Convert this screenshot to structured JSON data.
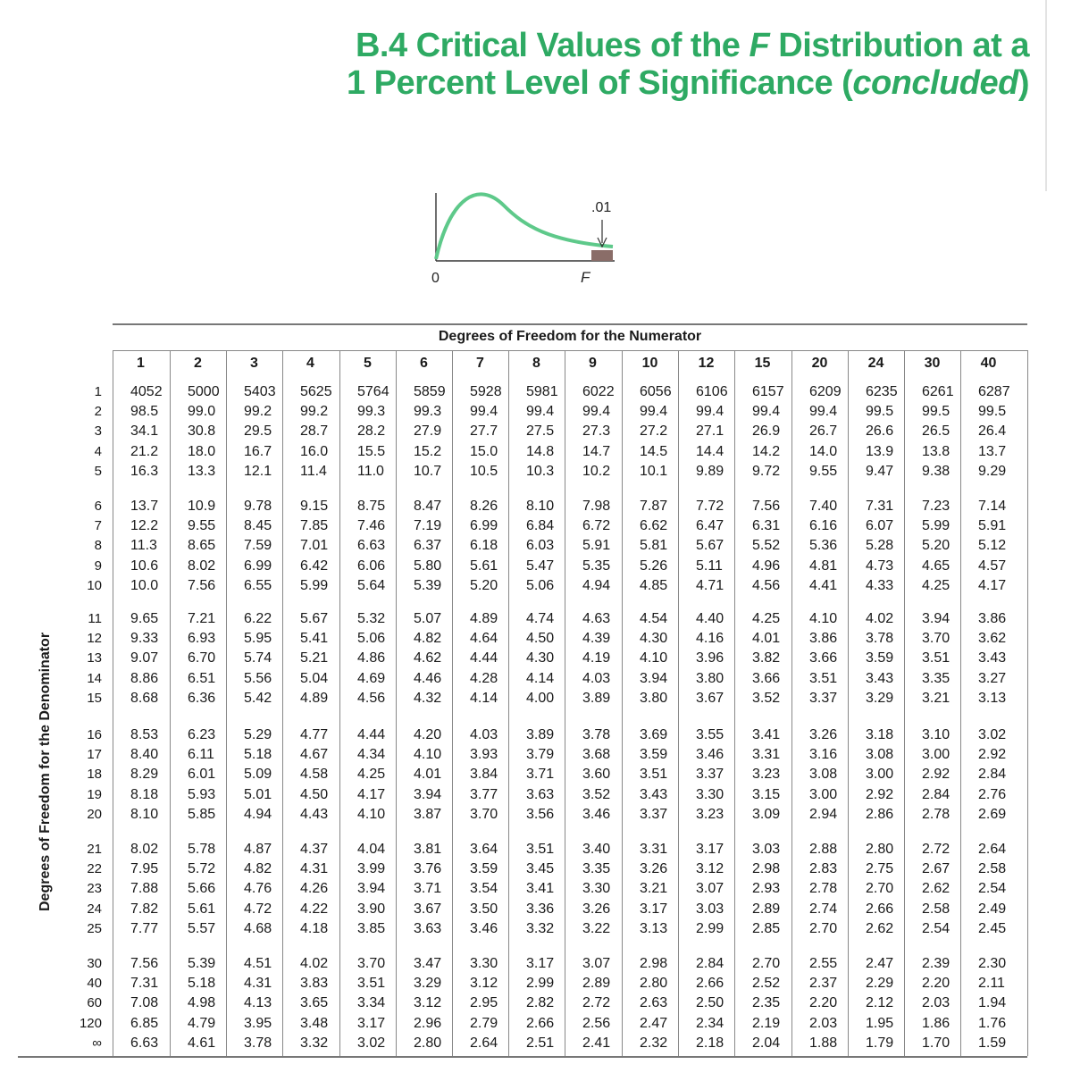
{
  "title": {
    "line1_prefix": "B.4 Critical Values of the ",
    "line1_italic": "F",
    "line1_suffix": " Distribution at a",
    "line2_prefix": "1 Percent Level of Significance (",
    "line2_italic": "concluded",
    "line2_suffix": ")"
  },
  "figure": {
    "tail_label": ".01",
    "origin_label": "0",
    "f_label": "F",
    "curve_color": "#5ec98a",
    "tail_fill": "#8a6d68"
  },
  "table": {
    "numerator_heading": "Degrees of Freedom for the Numerator",
    "denominator_heading": "Degrees of Freedom for the Denominator",
    "columns": [
      "1",
      "2",
      "3",
      "4",
      "5",
      "6",
      "7",
      "8",
      "9",
      "10",
      "12",
      "15",
      "20",
      "24",
      "30",
      "40"
    ],
    "row_groups": [
      {
        "labels": [
          "1",
          "2",
          "3",
          "4",
          "5"
        ],
        "rows": [
          [
            "4052",
            "5000",
            "5403",
            "5625",
            "5764",
            "5859",
            "5928",
            "5981",
            "6022",
            "6056",
            "6106",
            "6157",
            "6209",
            "6235",
            "6261",
            "6287"
          ],
          [
            "98.5",
            "99.0",
            "99.2",
            "99.2",
            "99.3",
            "99.3",
            "99.4",
            "99.4",
            "99.4",
            "99.4",
            "99.4",
            "99.4",
            "99.4",
            "99.5",
            "99.5",
            "99.5"
          ],
          [
            "34.1",
            "30.8",
            "29.5",
            "28.7",
            "28.2",
            "27.9",
            "27.7",
            "27.5",
            "27.3",
            "27.2",
            "27.1",
            "26.9",
            "26.7",
            "26.6",
            "26.5",
            "26.4"
          ],
          [
            "21.2",
            "18.0",
            "16.7",
            "16.0",
            "15.5",
            "15.2",
            "15.0",
            "14.8",
            "14.7",
            "14.5",
            "14.4",
            "14.2",
            "14.0",
            "13.9",
            "13.8",
            "13.7"
          ],
          [
            "16.3",
            "13.3",
            "12.1",
            "11.4",
            "11.0",
            "10.7",
            "10.5",
            "10.3",
            "10.2",
            "10.1",
            "9.89",
            "9.72",
            "9.55",
            "9.47",
            "9.38",
            "9.29"
          ]
        ]
      },
      {
        "labels": [
          "6",
          "7",
          "8",
          "9",
          "10"
        ],
        "rows": [
          [
            "13.7",
            "10.9",
            "9.78",
            "9.15",
            "8.75",
            "8.47",
            "8.26",
            "8.10",
            "7.98",
            "7.87",
            "7.72",
            "7.56",
            "7.40",
            "7.31",
            "7.23",
            "7.14"
          ],
          [
            "12.2",
            "9.55",
            "8.45",
            "7.85",
            "7.46",
            "7.19",
            "6.99",
            "6.84",
            "6.72",
            "6.62",
            "6.47",
            "6.31",
            "6.16",
            "6.07",
            "5.99",
            "5.91"
          ],
          [
            "11.3",
            "8.65",
            "7.59",
            "7.01",
            "6.63",
            "6.37",
            "6.18",
            "6.03",
            "5.91",
            "5.81",
            "5.67",
            "5.52",
            "5.36",
            "5.28",
            "5.20",
            "5.12"
          ],
          [
            "10.6",
            "8.02",
            "6.99",
            "6.42",
            "6.06",
            "5.80",
            "5.61",
            "5.47",
            "5.35",
            "5.26",
            "5.11",
            "4.96",
            "4.81",
            "4.73",
            "4.65",
            "4.57"
          ],
          [
            "10.0",
            "7.56",
            "6.55",
            "5.99",
            "5.64",
            "5.39",
            "5.20",
            "5.06",
            "4.94",
            "4.85",
            "4.71",
            "4.56",
            "4.41",
            "4.33",
            "4.25",
            "4.17"
          ]
        ]
      },
      {
        "labels": [
          "11",
          "12",
          "13",
          "14",
          "15"
        ],
        "rows": [
          [
            "9.65",
            "7.21",
            "6.22",
            "5.67",
            "5.32",
            "5.07",
            "4.89",
            "4.74",
            "4.63",
            "4.54",
            "4.40",
            "4.25",
            "4.10",
            "4.02",
            "3.94",
            "3.86"
          ],
          [
            "9.33",
            "6.93",
            "5.95",
            "5.41",
            "5.06",
            "4.82",
            "4.64",
            "4.50",
            "4.39",
            "4.30",
            "4.16",
            "4.01",
            "3.86",
            "3.78",
            "3.70",
            "3.62"
          ],
          [
            "9.07",
            "6.70",
            "5.74",
            "5.21",
            "4.86",
            "4.62",
            "4.44",
            "4.30",
            "4.19",
            "4.10",
            "3.96",
            "3.82",
            "3.66",
            "3.59",
            "3.51",
            "3.43"
          ],
          [
            "8.86",
            "6.51",
            "5.56",
            "5.04",
            "4.69",
            "4.46",
            "4.28",
            "4.14",
            "4.03",
            "3.94",
            "3.80",
            "3.66",
            "3.51",
            "3.43",
            "3.35",
            "3.27"
          ],
          [
            "8.68",
            "6.36",
            "5.42",
            "4.89",
            "4.56",
            "4.32",
            "4.14",
            "4.00",
            "3.89",
            "3.80",
            "3.67",
            "3.52",
            "3.37",
            "3.29",
            "3.21",
            "3.13"
          ]
        ]
      },
      {
        "labels": [
          "16",
          "17",
          "18",
          "19",
          "20"
        ],
        "rows": [
          [
            "8.53",
            "6.23",
            "5.29",
            "4.77",
            "4.44",
            "4.20",
            "4.03",
            "3.89",
            "3.78",
            "3.69",
            "3.55",
            "3.41",
            "3.26",
            "3.18",
            "3.10",
            "3.02"
          ],
          [
            "8.40",
            "6.11",
            "5.18",
            "4.67",
            "4.34",
            "4.10",
            "3.93",
            "3.79",
            "3.68",
            "3.59",
            "3.46",
            "3.31",
            "3.16",
            "3.08",
            "3.00",
            "2.92"
          ],
          [
            "8.29",
            "6.01",
            "5.09",
            "4.58",
            "4.25",
            "4.01",
            "3.84",
            "3.71",
            "3.60",
            "3.51",
            "3.37",
            "3.23",
            "3.08",
            "3.00",
            "2.92",
            "2.84"
          ],
          [
            "8.18",
            "5.93",
            "5.01",
            "4.50",
            "4.17",
            "3.94",
            "3.77",
            "3.63",
            "3.52",
            "3.43",
            "3.30",
            "3.15",
            "3.00",
            "2.92",
            "2.84",
            "2.76"
          ],
          [
            "8.10",
            "5.85",
            "4.94",
            "4.43",
            "4.10",
            "3.87",
            "3.70",
            "3.56",
            "3.46",
            "3.37",
            "3.23",
            "3.09",
            "2.94",
            "2.86",
            "2.78",
            "2.69"
          ]
        ]
      },
      {
        "labels": [
          "21",
          "22",
          "23",
          "24",
          "25"
        ],
        "rows": [
          [
            "8.02",
            "5.78",
            "4.87",
            "4.37",
            "4.04",
            "3.81",
            "3.64",
            "3.51",
            "3.40",
            "3.31",
            "3.17",
            "3.03",
            "2.88",
            "2.80",
            "2.72",
            "2.64"
          ],
          [
            "7.95",
            "5.72",
            "4.82",
            "4.31",
            "3.99",
            "3.76",
            "3.59",
            "3.45",
            "3.35",
            "3.26",
            "3.12",
            "2.98",
            "2.83",
            "2.75",
            "2.67",
            "2.58"
          ],
          [
            "7.88",
            "5.66",
            "4.76",
            "4.26",
            "3.94",
            "3.71",
            "3.54",
            "3.41",
            "3.30",
            "3.21",
            "3.07",
            "2.93",
            "2.78",
            "2.70",
            "2.62",
            "2.54"
          ],
          [
            "7.82",
            "5.61",
            "4.72",
            "4.22",
            "3.90",
            "3.67",
            "3.50",
            "3.36",
            "3.26",
            "3.17",
            "3.03",
            "2.89",
            "2.74",
            "2.66",
            "2.58",
            "2.49"
          ],
          [
            "7.77",
            "5.57",
            "4.68",
            "4.18",
            "3.85",
            "3.63",
            "3.46",
            "3.32",
            "3.22",
            "3.13",
            "2.99",
            "2.85",
            "2.70",
            "2.62",
            "2.54",
            "2.45"
          ]
        ]
      },
      {
        "labels": [
          "30",
          "40",
          "60",
          "120",
          "∞"
        ],
        "rows": [
          [
            "7.56",
            "5.39",
            "4.51",
            "4.02",
            "3.70",
            "3.47",
            "3.30",
            "3.17",
            "3.07",
            "2.98",
            "2.84",
            "2.70",
            "2.55",
            "2.47",
            "2.39",
            "2.30"
          ],
          [
            "7.31",
            "5.18",
            "4.31",
            "3.83",
            "3.51",
            "3.29",
            "3.12",
            "2.99",
            "2.89",
            "2.80",
            "2.66",
            "2.52",
            "2.37",
            "2.29",
            "2.20",
            "2.11"
          ],
          [
            "7.08",
            "4.98",
            "4.13",
            "3.65",
            "3.34",
            "3.12",
            "2.95",
            "2.82",
            "2.72",
            "2.63",
            "2.50",
            "2.35",
            "2.20",
            "2.12",
            "2.03",
            "1.94"
          ],
          [
            "6.85",
            "4.79",
            "3.95",
            "3.48",
            "3.17",
            "2.96",
            "2.79",
            "2.66",
            "2.56",
            "2.47",
            "2.34",
            "2.19",
            "2.03",
            "1.95",
            "1.86",
            "1.76"
          ],
          [
            "6.63",
            "4.61",
            "3.78",
            "3.32",
            "3.02",
            "2.80",
            "2.64",
            "2.51",
            "2.41",
            "2.32",
            "2.18",
            "2.04",
            "1.88",
            "1.79",
            "1.70",
            "1.59"
          ]
        ]
      }
    ]
  }
}
